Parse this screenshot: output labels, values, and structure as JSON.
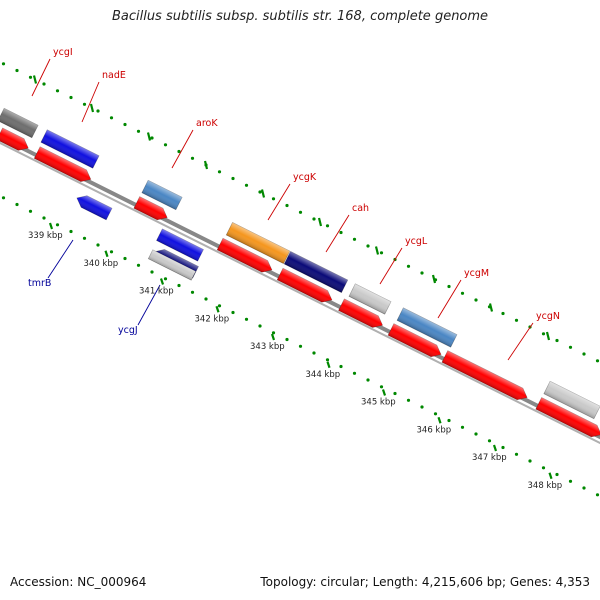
{
  "title": "Bacillus subtilis subsp. subtilis str. 168, complete genome",
  "accession": {
    "label": "Accession: NC_000964"
  },
  "summary": {
    "text": "Topology: circular; Length: 4,215,606 bp; Genes: 4,353"
  },
  "scale": {
    "ticks": [
      {
        "label": "339 kbp"
      },
      {
        "label": "340 kbp"
      },
      {
        "label": "341 kbp"
      },
      {
        "label": "342 kbp"
      },
      {
        "label": "343 kbp"
      },
      {
        "label": "344 kbp"
      },
      {
        "label": "345 kbp"
      },
      {
        "label": "346 kbp"
      },
      {
        "label": "347 kbp"
      },
      {
        "label": "348 kbp"
      }
    ]
  },
  "forward_genes": [
    {
      "name": "ycgI",
      "color": "#6e6e6e"
    },
    {
      "name": "nadE",
      "color": "#1010e0"
    },
    {
      "name": "aroK",
      "color": "#4a86c4"
    },
    {
      "name": "ycgK",
      "color": "#f5961e"
    },
    {
      "name": "cah",
      "color": "#0a0a78"
    },
    {
      "name": "ycgL",
      "color": "#c9c9c9"
    },
    {
      "name": "ycgM",
      "color": "#4a86c4"
    },
    {
      "name": "ycgN",
      "color": "#c9c9c9"
    }
  ],
  "reverse_genes": [
    {
      "name": "tmrB",
      "color": "#1010e0"
    },
    {
      "name": "ycgJ",
      "color": "#0a0a78"
    }
  ],
  "colors": {
    "forward_label": "#cc0000",
    "reverse_label": "#000099",
    "cds_red": "#ff0000",
    "tick_green": "#008800",
    "backbone": "#888888"
  }
}
